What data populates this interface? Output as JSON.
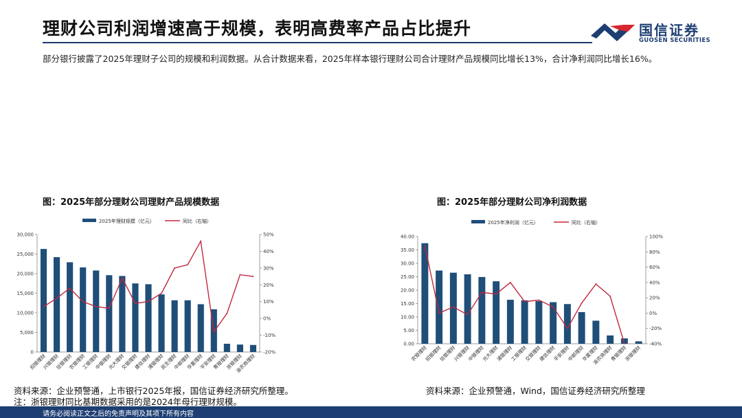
{
  "header": {
    "title": "理财公司利润增速高于规模，表明高费率产品占比提升",
    "logo_cn": "国信证券",
    "logo_en": "GUOSEN SECURITIES"
  },
  "intro": "部分银行披露了2025年理财子公司的规模和利润数据。从合计数据来看，2025年样本银行理财公司合计理财产品规模同比增长13%，合计净利润同比增长16%。",
  "colors": {
    "bar": "#1f4e79",
    "line": "#c0283c",
    "brand": "#1d3e73",
    "logo_red": "#d7262d"
  },
  "left": {
    "title": "图：2025年部分理财公司理财产品规模数据",
    "source": "资料来源：企业预警通，上市银行2025年报，国信证券经济研究所整理。",
    "note": "注：浙银理财同比基期数据采用的是2024年母行理财规模。"
  },
  "right": {
    "title": "图：2025年部分理财公司净利润数据",
    "source": "资料来源：企业预警通，Wind，国信证券经济研究所整理"
  },
  "footer": "请务必阅读正文之后的免责声明及其项下所有内容",
  "chart_data": [
    {
      "type": "bar",
      "title": "图：2025年部分理财公司理财产品规模数据",
      "categories": [
        "招银理财",
        "兴银理财",
        "信银理财",
        "农银理财",
        "工银理财",
        "中银理财",
        "光大理财",
        "交银理财",
        "建信理财",
        "浦银理财",
        "民生理财",
        "中邮理财",
        "华夏理财",
        "平安理财",
        "青银理财",
        "浙银理财",
        "渝农商理财"
      ],
      "series": [
        {
          "name": "2025年理财规模（亿元）",
          "axis": "left",
          "type": "bar",
          "values": [
            26300,
            24200,
            22900,
            21600,
            20800,
            19600,
            19400,
            17500,
            17300,
            14700,
            13200,
            13200,
            12200,
            10900,
            2100,
            1900,
            1800
          ]
        },
        {
          "name": "同比（右轴）",
          "axis": "right",
          "type": "line",
          "values": [
            7,
            12,
            18,
            10,
            7,
            6,
            24,
            9,
            10,
            15,
            30,
            32,
            46,
            -8,
            3,
            26,
            25
          ]
        }
      ],
      "left_axis": {
        "min": 0,
        "max": 30000,
        "ticks": [
          "0",
          "5,000",
          "10,000",
          "15,000",
          "20,000",
          "25,000",
          "30,000"
        ]
      },
      "right_axis": {
        "min": -20,
        "max": 50,
        "ticks": [
          "-20%",
          "-10%",
          "0%",
          "10%",
          "20%",
          "30%",
          "40%",
          "50%"
        ]
      },
      "legend": "top"
    },
    {
      "type": "bar",
      "title": "图：2025年部分理财公司净利润数据",
      "categories": [
        "农银理财",
        "招银理财",
        "信银理财",
        "兴银理财",
        "中银理财",
        "光大理财",
        "浦银理财",
        "工银理财",
        "交银理财",
        "建信理财",
        "平安理财",
        "中邮理财",
        "华夏理财",
        "渝农商理财",
        "青银理财",
        "浙银理财"
      ],
      "series": [
        {
          "name": "2025年净利润（亿元）",
          "axis": "left",
          "type": "bar",
          "values": [
            37.5,
            27.3,
            26.5,
            25.9,
            24.9,
            23.3,
            16.4,
            16.2,
            15.9,
            15.5,
            14.8,
            11.8,
            8.6,
            3.1,
            2.0,
            0.9
          ]
        },
        {
          "name": "同比（右轴）",
          "axis": "right",
          "type": "line",
          "values": [
            88,
            0,
            8,
            -2,
            27,
            25,
            40,
            15,
            17,
            8,
            -20,
            13,
            38,
            22,
            -40,
            null
          ]
        }
      ],
      "left_axis": {
        "min": 0,
        "max": 40,
        "ticks": [
          "0.00",
          "5.00",
          "10.00",
          "15.00",
          "20.00",
          "25.00",
          "30.00",
          "35.00",
          "40.00"
        ]
      },
      "right_axis": {
        "min": -40,
        "max": 100,
        "ticks": [
          "-40%",
          "-20%",
          "0%",
          "20%",
          "40%",
          "60%",
          "80%",
          "100%"
        ]
      },
      "legend": "top"
    }
  ]
}
